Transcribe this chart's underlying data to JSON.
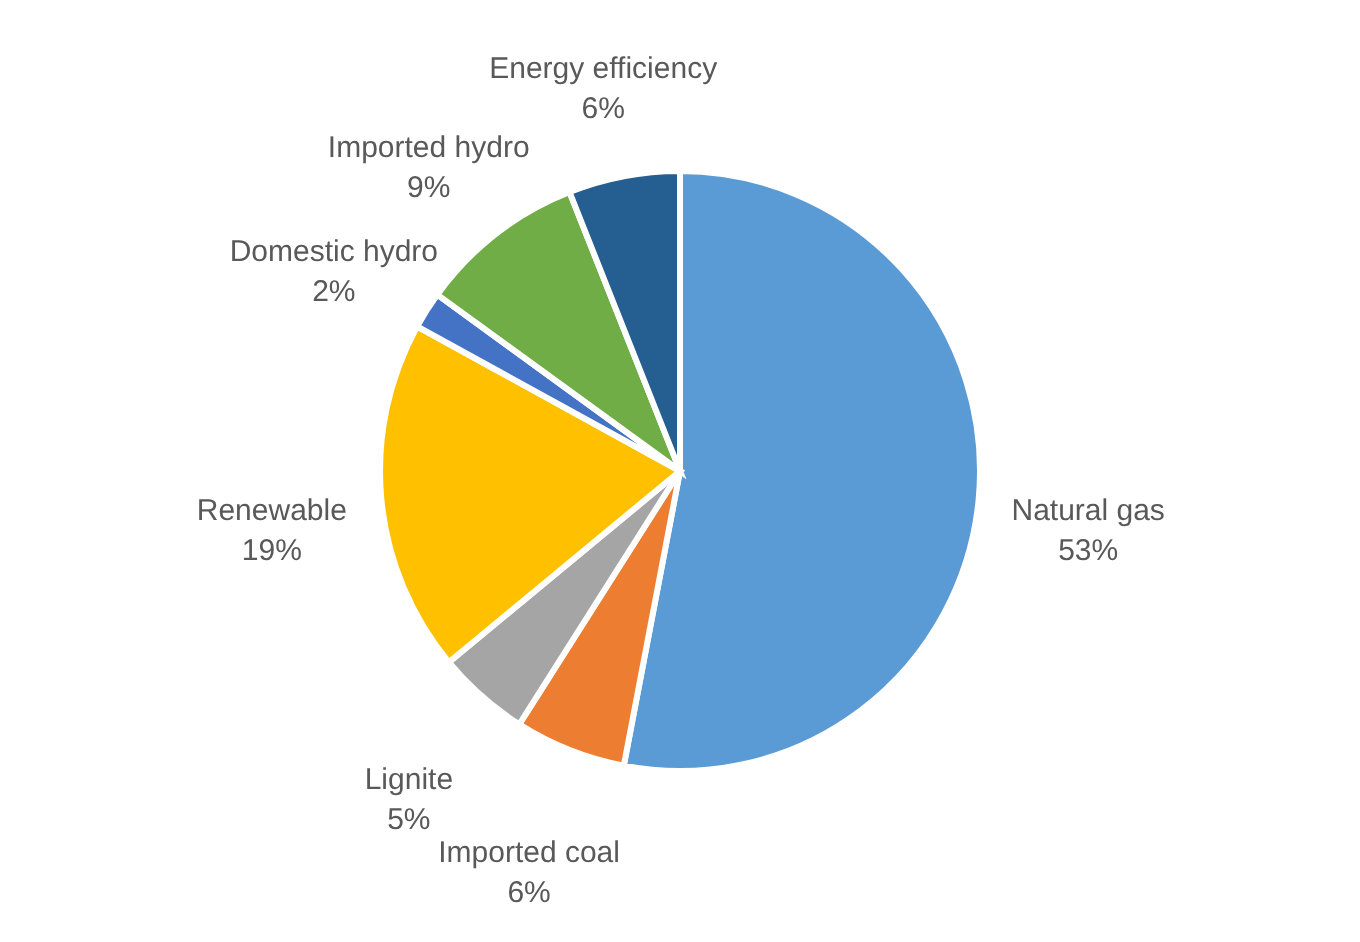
{
  "chart_data": {
    "type": "pie",
    "categories": [
      "Natural gas",
      "Imported coal",
      "Lignite",
      "Renewable",
      "Domestic hydro",
      "Imported hydro",
      "Energy efficiency"
    ],
    "values": [
      53,
      6,
      5,
      19,
      2,
      9,
      6
    ],
    "value_labels": [
      "53%",
      "6%",
      "5%",
      "19%",
      "2%",
      "9%",
      "6%"
    ],
    "colors": [
      "#5b9bd5",
      "#ed7d31",
      "#a5a5a5",
      "#ffc000",
      "#4472c4",
      "#70ad47",
      "#255e91"
    ]
  }
}
